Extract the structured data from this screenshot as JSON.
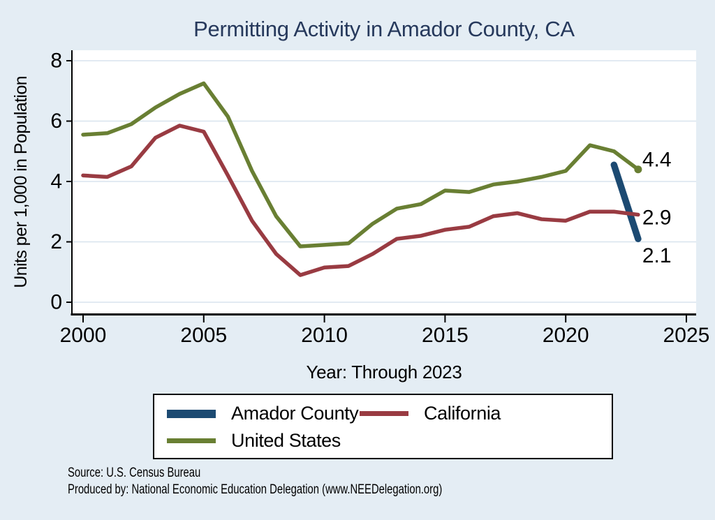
{
  "title": "Permitting Activity in Amador County, CA",
  "chart_data": {
    "type": "line",
    "title": "Permitting Activity in Amador County, CA",
    "xlabel": "Year: Through 2023",
    "ylabel": "Units per 1,000 in Population",
    "ylim": [
      0,
      8
    ],
    "yticks": [
      0,
      2,
      4,
      6,
      8
    ],
    "xticks": [
      2000,
      2005,
      2010,
      2015,
      2020,
      2025
    ],
    "grid": "horizontal",
    "legend_position": "bottom",
    "background": "#e4edf4",
    "plot_background": "#ffffff",
    "gridline_color": "#d8e4ee",
    "axis_color": "#000000",
    "series": [
      {
        "name": "Amador County",
        "color": "#1c4a72",
        "stroke_width": 9.5,
        "x": [
          2022,
          2023
        ],
        "values": [
          4.55,
          2.1
        ],
        "end_label": "2.1",
        "end_marker": false
      },
      {
        "name": "California",
        "color": "#993b42",
        "stroke_width": 5.5,
        "x": [
          2000,
          2001,
          2002,
          2003,
          2004,
          2005,
          2006,
          2007,
          2008,
          2009,
          2010,
          2011,
          2012,
          2013,
          2014,
          2015,
          2016,
          2017,
          2018,
          2019,
          2020,
          2021,
          2022,
          2023
        ],
        "values": [
          4.2,
          4.15,
          4.5,
          5.45,
          5.85,
          5.65,
          4.2,
          2.7,
          1.6,
          0.9,
          1.15,
          1.2,
          1.6,
          2.1,
          2.2,
          2.4,
          2.5,
          2.85,
          2.95,
          2.75,
          2.7,
          3.0,
          3.0,
          2.9
        ],
        "end_label": "2.9",
        "end_marker": false
      },
      {
        "name": "United States",
        "color": "#697f33",
        "stroke_width": 5.5,
        "x": [
          2000,
          2001,
          2002,
          2003,
          2004,
          2005,
          2006,
          2007,
          2008,
          2009,
          2010,
          2011,
          2012,
          2013,
          2014,
          2015,
          2016,
          2017,
          2018,
          2019,
          2020,
          2021,
          2022,
          2023
        ],
        "values": [
          5.55,
          5.6,
          5.9,
          6.45,
          6.9,
          7.25,
          6.15,
          4.35,
          2.85,
          1.85,
          1.9,
          1.95,
          2.6,
          3.1,
          3.25,
          3.7,
          3.65,
          3.9,
          4.0,
          4.15,
          4.35,
          5.2,
          5.0,
          4.4
        ],
        "end_label": "4.4",
        "end_marker": true
      }
    ]
  },
  "footer": {
    "line1": "Source: U.S. Census Bureau",
    "line2": "Produced by: National Economic Education Delegation (www.NEEDelegation.org)"
  }
}
